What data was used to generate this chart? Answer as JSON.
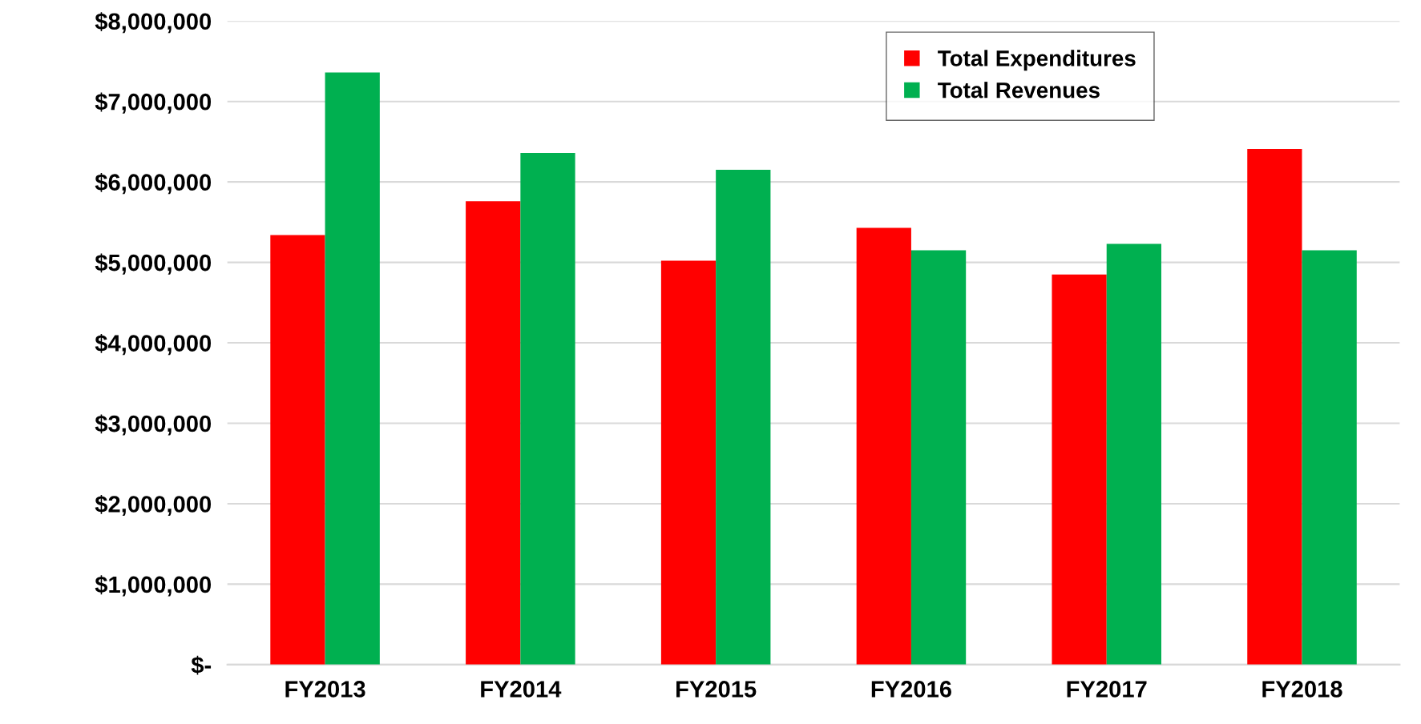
{
  "chart_data": {
    "type": "bar",
    "categories": [
      "FY2013",
      "FY2014",
      "FY2015",
      "FY2016",
      "FY2017",
      "FY2018"
    ],
    "series": [
      {
        "name": "Total Expenditures",
        "color": "#ff0000",
        "values": [
          5340000,
          5760000,
          5020000,
          5430000,
          4850000,
          6410000
        ]
      },
      {
        "name": "Total Revenues",
        "color": "#00b050",
        "values": [
          7360000,
          6360000,
          6150000,
          5150000,
          5230000,
          5150000
        ]
      }
    ],
    "ylim": [
      0,
      8000000
    ],
    "yticks": [
      {
        "value": 0,
        "label": "$-"
      },
      {
        "value": 1000000,
        "label": "$1,000,000"
      },
      {
        "value": 2000000,
        "label": "$2,000,000"
      },
      {
        "value": 3000000,
        "label": "$3,000,000"
      },
      {
        "value": 4000000,
        "label": "$4,000,000"
      },
      {
        "value": 5000000,
        "label": "$5,000,000"
      },
      {
        "value": 6000000,
        "label": "$6,000,000"
      },
      {
        "value": 7000000,
        "label": "$7,000,000"
      },
      {
        "value": 8000000,
        "label": "$8,000,000"
      }
    ],
    "grid": "y",
    "legend": "top right"
  }
}
